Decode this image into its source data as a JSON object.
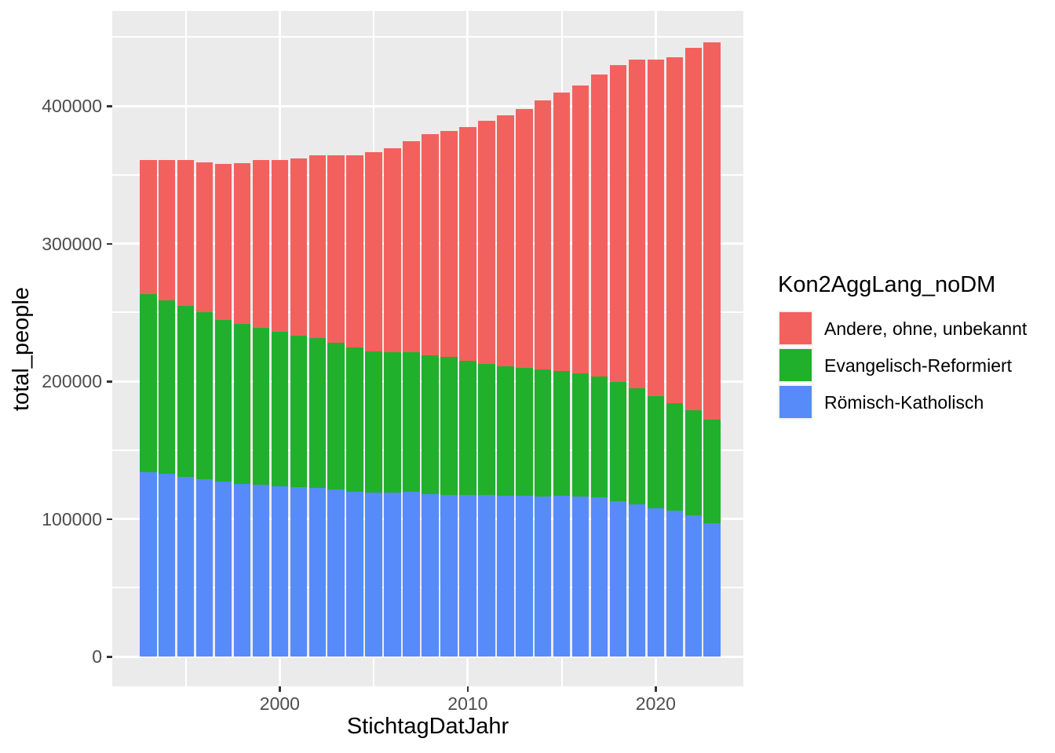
{
  "chart_data": {
    "type": "bar",
    "stacked": true,
    "xlabel": "StichtagDatJahr",
    "ylabel": "total_people",
    "legend_title": "Kon2AggLang_noDM",
    "legend_position": "right",
    "grid": "white major and minor gridlines on gray panel",
    "x": [
      1993,
      1994,
      1995,
      1996,
      1997,
      1998,
      1999,
      2000,
      2001,
      2002,
      2003,
      2004,
      2005,
      2006,
      2007,
      2008,
      2009,
      2010,
      2011,
      2012,
      2013,
      2014,
      2015,
      2016,
      2017,
      2018,
      2019,
      2020,
      2021,
      2022,
      2023
    ],
    "series": [
      {
        "name": "Andere, ohne, unbekannt",
        "color": "#F3615E",
        "values": [
          97400,
          101800,
          106000,
          109000,
          113300,
          116600,
          122100,
          125000,
          128700,
          132500,
          136200,
          139600,
          144400,
          147800,
          153300,
          160800,
          164200,
          170000,
          176900,
          182300,
          187900,
          195200,
          202300,
          209000,
          219300,
          230000,
          238500,
          244700,
          251200,
          263100,
          274200
        ]
      },
      {
        "name": "Evangelisch-Reformiert",
        "color": "#20B02C",
        "values": [
          129300,
          126400,
          124000,
          121000,
          117600,
          116600,
          114000,
          112300,
          110300,
          108800,
          106300,
          104400,
          102800,
          102100,
          101800,
          101000,
          100200,
          97700,
          95100,
          93700,
          92800,
          92100,
          90400,
          89700,
          88000,
          87100,
          84200,
          81700,
          78100,
          76400,
          75000
        ]
      },
      {
        "name": "Römisch-Katholisch",
        "color": "#578BFA",
        "values": [
          134000,
          132500,
          130700,
          129000,
          127000,
          125200,
          124600,
          123400,
          122900,
          122600,
          121400,
          119900,
          119000,
          119200,
          119500,
          117700,
          117500,
          117100,
          117400,
          117000,
          116900,
          116500,
          116800,
          116100,
          115500,
          112600,
          110700,
          107500,
          106000,
          102400,
          97100
        ]
      }
    ],
    "stack_order_bottom_to_top": [
      "Römisch-Katholisch",
      "Evangelisch-Reformiert",
      "Andere, ohne, unbekannt"
    ],
    "y_ticks": [
      0,
      100000,
      200000,
      300000,
      400000
    ],
    "y_tick_labels": [
      "0",
      "100000",
      "200000",
      "300000",
      "400000"
    ],
    "y_gridlines_major": [
      0,
      100000,
      200000,
      300000,
      400000
    ],
    "y_gridlines_minor": [
      50000,
      150000,
      250000,
      350000,
      450000
    ],
    "x_ticks": [
      2000,
      2010,
      2020
    ],
    "x_tick_labels": [
      "2000",
      "2010",
      "2020"
    ],
    "x_gridlines_major": [
      2000,
      2010,
      2020
    ],
    "x_gridlines_minor": [
      1995,
      2005,
      2015
    ],
    "ylim": [
      0,
      468900
    ],
    "xlim": [
      1991.1,
      2024.7
    ]
  },
  "colors": {
    "panel_background": "#EBEBEB",
    "gridline": "#FFFFFF",
    "tick_text": "#4D4D4D",
    "axis_title_text": "#000000",
    "figure_background": "#FFFFFF"
  }
}
